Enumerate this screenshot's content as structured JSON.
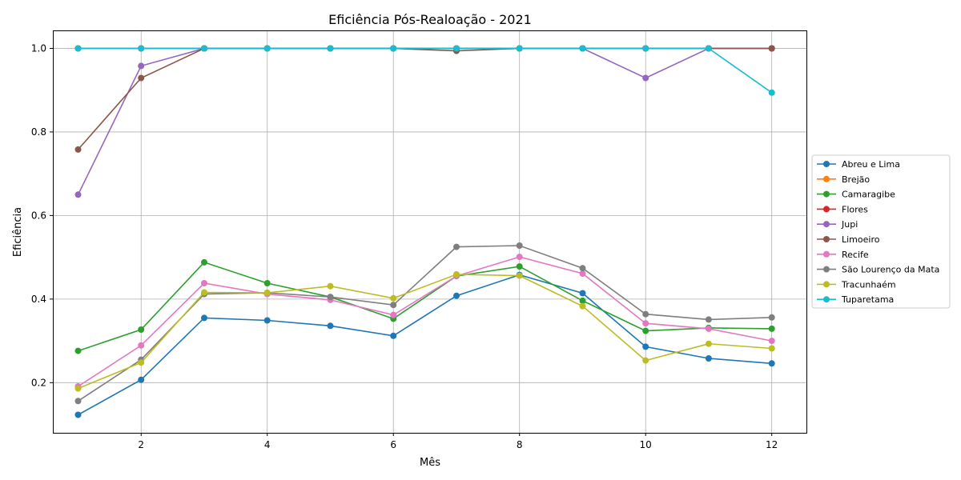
{
  "chart_data": {
    "type": "line",
    "title": "Eficiência Pós-Realoação - 2021",
    "xlabel": "Mês",
    "ylabel": "Eficiência",
    "xlim": [
      0.6,
      12.55
    ],
    "ylim": [
      0.08,
      1.043
    ],
    "xticks": [
      2,
      4,
      6,
      8,
      10,
      12
    ],
    "yticks": [
      0.2,
      0.4,
      0.6,
      0.8,
      1.0
    ],
    "grid": true,
    "legend_position": "right-outside",
    "x": [
      1,
      2,
      3,
      4,
      5,
      6,
      7,
      8,
      9,
      10,
      11,
      12
    ],
    "series": [
      {
        "name": "Abreu e Lima",
        "color": "#1f77b4",
        "values": [
          0.123,
          0.207,
          0.355,
          0.349,
          0.336,
          0.312,
          0.408,
          0.458,
          0.414,
          0.286,
          0.258,
          0.246
        ]
      },
      {
        "name": "Brejão",
        "color": "#ff7f0e",
        "values": [
          1.0,
          1.0,
          1.0,
          1.0,
          1.0,
          1.0,
          1.0,
          1.0,
          1.0,
          1.0,
          1.0,
          1.0
        ]
      },
      {
        "name": "Camaragibe",
        "color": "#2ca02c",
        "values": [
          0.276,
          0.327,
          0.488,
          0.438,
          0.405,
          0.353,
          0.455,
          0.478,
          0.396,
          0.324,
          0.331,
          0.329
        ]
      },
      {
        "name": "Flores",
        "color": "#d62728",
        "values": [
          1.0,
          1.0,
          1.0,
          1.0,
          1.0,
          1.0,
          1.0,
          1.0,
          1.0,
          1.0,
          1.0,
          1.0
        ]
      },
      {
        "name": "Jupi",
        "color": "#9467bd",
        "values": [
          0.65,
          0.958,
          1.0,
          1.0,
          1.0,
          1.0,
          1.0,
          1.0,
          1.0,
          0.929,
          1.0,
          1.0
        ]
      },
      {
        "name": "Limoeiro",
        "color": "#8c564b",
        "values": [
          0.758,
          0.929,
          1.0,
          1.0,
          1.0,
          1.0,
          0.994,
          1.0,
          1.0,
          1.0,
          1.0,
          1.0
        ]
      },
      {
        "name": "Recife",
        "color": "#e377c2",
        "values": [
          0.191,
          0.289,
          0.438,
          0.412,
          0.398,
          0.362,
          0.455,
          0.501,
          0.461,
          0.342,
          0.329,
          0.3
        ]
      },
      {
        "name": "São Lourenço da Mata",
        "color": "#7f7f7f",
        "values": [
          0.156,
          0.255,
          0.412,
          0.415,
          0.405,
          0.386,
          0.525,
          0.528,
          0.474,
          0.364,
          0.351,
          0.356
        ]
      },
      {
        "name": "Tracunhaém",
        "color": "#bcbd22",
        "values": [
          0.186,
          0.248,
          0.416,
          0.415,
          0.431,
          0.402,
          0.459,
          0.456,
          0.383,
          0.253,
          0.293,
          0.282
        ]
      },
      {
        "name": "Tuparetama",
        "color": "#17becf",
        "values": [
          1.0,
          1.0,
          1.0,
          1.0,
          1.0,
          1.0,
          1.0,
          1.0,
          1.0,
          1.0,
          1.0,
          0.894
        ]
      }
    ]
  }
}
